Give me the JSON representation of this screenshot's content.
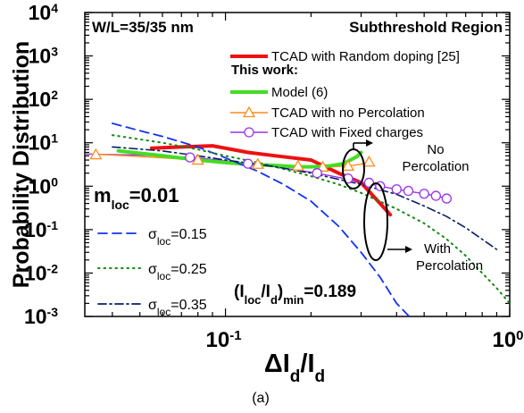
{
  "chart_data": {
    "type": "line",
    "xscale": "log",
    "yscale": "log",
    "xlim": [
      0.032,
      1
    ],
    "ylim": [
      0.001,
      10000
    ],
    "xlabel": "ΔI_d/I_d",
    "ylabel": "Probability Distribution",
    "caption": "(a)",
    "x_ticks": [
      {
        "v": 0.1,
        "base": "10",
        "exp": "-1"
      },
      {
        "v": 1,
        "base": "10",
        "exp": "0"
      }
    ],
    "y_ticks": [
      {
        "v": 0.001,
        "base": "10",
        "exp": "-3"
      },
      {
        "v": 0.01,
        "base": "10",
        "exp": "-2"
      },
      {
        "v": 0.1,
        "base": "10",
        "exp": "-1"
      },
      {
        "v": 1,
        "base": "10",
        "exp": "0"
      },
      {
        "v": 10,
        "base": "10",
        "exp": "1"
      },
      {
        "v": 100,
        "base": "10",
        "exp": "2"
      },
      {
        "v": 1000,
        "base": "10",
        "exp": "3"
      },
      {
        "v": 10000,
        "base": "10",
        "exp": "4"
      }
    ],
    "annotations": {
      "device": "W/L=35/35 nm",
      "region": "Subthreshold Region",
      "this_work": "This work:",
      "m_loc_prefix": "m",
      "m_loc_sub": "loc",
      "m_loc_value": "=0.01",
      "ratio_open": "(I",
      "ratio_sub1": "loc",
      "ratio_mid": "/I",
      "ratio_sub2": "d",
      "ratio_close": ")",
      "ratio_sub3": "min",
      "ratio_value": "=0.189",
      "no_perc_1": "No",
      "no_perc_2": "Percolation",
      "with_perc_1": "With",
      "with_perc_2": "Percolation"
    },
    "legend_main": [
      {
        "label": "TCAD with Random doping [25]",
        "color": "#ee1111",
        "style": "solid",
        "marker": "none"
      },
      {
        "label": "Model (6)",
        "color": "#44dd22",
        "style": "solid",
        "marker": "none"
      },
      {
        "label": "TCAD with no Percolation",
        "color": "#ff8c1a",
        "style": "solid",
        "marker": "triangle"
      },
      {
        "label": "TCAD with Fixed charges",
        "color": "#9933ee",
        "style": "solid",
        "marker": "circle"
      }
    ],
    "legend_sigma": [
      {
        "prefix": "σ",
        "sub": "loc",
        "value": "=0.15",
        "color": "#1133ee",
        "style": "dash"
      },
      {
        "prefix": "σ",
        "sub": "loc",
        "value": "=0.25",
        "color": "#118811",
        "style": "dot"
      },
      {
        "prefix": "σ",
        "sub": "loc",
        "value": "=0.35",
        "color": "#0a1f66",
        "style": "dashdot"
      }
    ],
    "series": [
      {
        "name": "TCAD with Random doping [25]",
        "color": "#ee1111",
        "style": "solid",
        "width": 4,
        "x": [
          0.055,
          0.07,
          0.09,
          0.12,
          0.15,
          0.2,
          0.25,
          0.3,
          0.35,
          0.38
        ],
        "y": [
          7.5,
          8,
          8.5,
          6,
          5,
          4,
          2,
          1.2,
          0.4,
          0.22
        ]
      },
      {
        "name": "TCAD with Fixed charges",
        "color": "#9933ee",
        "style": "solid",
        "width": 1.4,
        "x": [
          0.032,
          0.05,
          0.08,
          0.1,
          0.13,
          0.16,
          0.2,
          0.25,
          0.3,
          0.35,
          0.4,
          0.45,
          0.5,
          0.55,
          0.6
        ],
        "y": [
          5.5,
          5.2,
          4.5,
          3.8,
          3.2,
          2.6,
          2.1,
          1.6,
          1.25,
          1.0,
          0.85,
          0.75,
          0.67,
          0.6,
          0.52
        ]
      },
      {
        "name": "TCAD with no Percolation",
        "color": "#ff8c1a",
        "style": "solid",
        "width": 1.4,
        "x": [
          0.034,
          0.045,
          0.06,
          0.08,
          0.1,
          0.12,
          0.14,
          0.16,
          0.18,
          0.2,
          0.22,
          0.24,
          0.26,
          0.28,
          0.3,
          0.32
        ],
        "y": [
          5.5,
          5,
          4.5,
          4,
          3.5,
          3.3,
          3.1,
          3,
          2.9,
          2.8,
          2.75,
          2.8,
          2.9,
          3,
          3.2,
          3.6
        ]
      },
      {
        "name": "Model (6)",
        "color": "#44dd22",
        "style": "solid",
        "width": 4,
        "x": [
          0.042,
          0.06,
          0.08,
          0.1,
          0.12,
          0.15,
          0.18,
          0.2,
          0.23,
          0.26,
          0.29,
          0.3
        ],
        "y": [
          6.5,
          5,
          4,
          3.5,
          3.2,
          3,
          2.8,
          2.8,
          2.9,
          3.3,
          4.8,
          6
        ]
      },
      {
        "name": "σloc=0.15",
        "color": "#1133ee",
        "style": "dash",
        "width": 1.8,
        "x": [
          0.04,
          0.05,
          0.06,
          0.08,
          0.1,
          0.13,
          0.16,
          0.2,
          0.25,
          0.3,
          0.35,
          0.4,
          0.45
        ],
        "y": [
          28,
          19,
          14,
          8,
          4.5,
          2.2,
          1.1,
          0.45,
          0.12,
          0.03,
          0.008,
          0.002,
          0.0009
        ]
      },
      {
        "name": "σloc=0.25",
        "color": "#118811",
        "style": "dot",
        "width": 2,
        "x": [
          0.04,
          0.06,
          0.08,
          0.1,
          0.13,
          0.16,
          0.2,
          0.25,
          0.3,
          0.4,
          0.5,
          0.6,
          0.7,
          0.8,
          0.9,
          1.0
        ],
        "y": [
          15,
          10,
          7,
          5,
          3.5,
          2.5,
          1.7,
          1.1,
          0.7,
          0.3,
          0.14,
          0.06,
          0.025,
          0.01,
          0.0045,
          0.002
        ]
      },
      {
        "name": "σloc=0.35",
        "color": "#0a1f66",
        "style": "dashdot",
        "width": 1.6,
        "x": [
          0.04,
          0.06,
          0.08,
          0.1,
          0.15,
          0.2,
          0.3,
          0.4,
          0.5,
          0.6,
          0.7,
          0.8,
          0.9
        ],
        "y": [
          8,
          6.5,
          5,
          4,
          2.8,
          2,
          1.1,
          0.65,
          0.35,
          0.2,
          0.11,
          0.06,
          0.035
        ]
      }
    ],
    "markers": [
      {
        "series": "TCAD with no Percolation",
        "shape": "triangle",
        "color": "#ff8c1a",
        "x": [
          0.035,
          0.08,
          0.13,
          0.18,
          0.22,
          0.27,
          0.32
        ],
        "y": [
          5.3,
          4,
          3.2,
          2.9,
          2.75,
          2.9,
          3.6
        ]
      },
      {
        "series": "TCAD with Fixed charges",
        "shape": "circle",
        "color": "#9933ee",
        "x": [
          0.075,
          0.12,
          0.21,
          0.27,
          0.32,
          0.35,
          0.4,
          0.44,
          0.5,
          0.55,
          0.6
        ],
        "y": [
          4.6,
          3.3,
          2.0,
          1.5,
          1.2,
          1.0,
          0.85,
          0.78,
          0.67,
          0.6,
          0.52
        ]
      }
    ]
  }
}
